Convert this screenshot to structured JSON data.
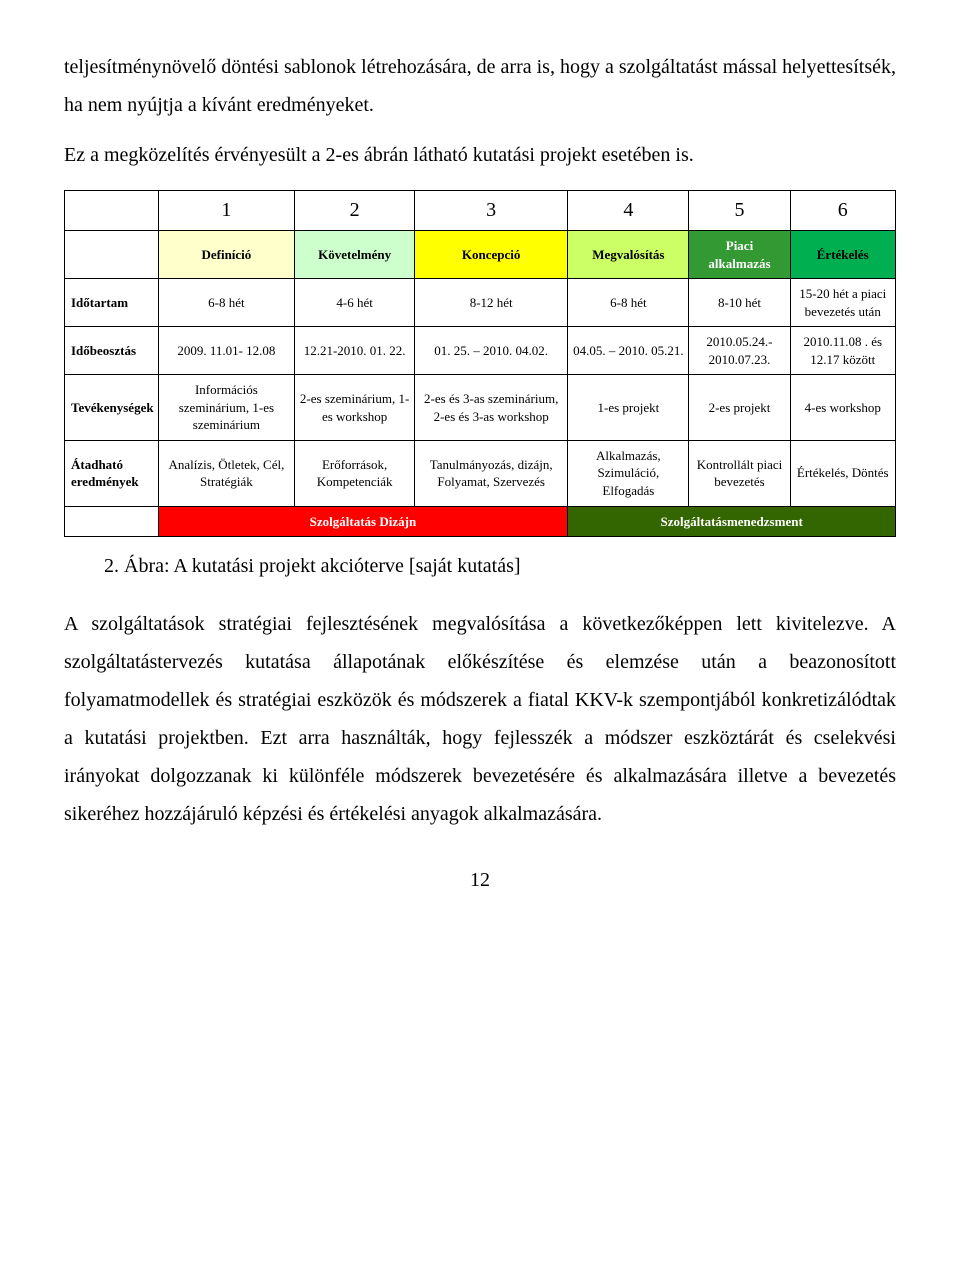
{
  "intro": {
    "p1": "teljesítménynövelő döntési sablonok létrehozására, de arra is, hogy a szolgáltatást mással helyettesítsék, ha nem nyújtja a kívánt eredményeket.",
    "p2": "Ez a megközelítés érvényesült a 2-es ábrán látható kutatási projekt esetében is."
  },
  "table": {
    "numbers": [
      "",
      "1",
      "2",
      "3",
      "4",
      "5",
      "6"
    ],
    "header_labels": [
      "Definíció",
      "Követelmény",
      "Koncepció",
      "Megvalósítás",
      "Piaci alkalmazás",
      "Értékelés"
    ],
    "header_bg": [
      "#ffffcc",
      "#ccffcc",
      "#ffff00",
      "#ccff66",
      "#339933",
      "#00b050"
    ],
    "header_color": [
      "#000",
      "#000",
      "#000",
      "#000",
      "#fff",
      "#000"
    ],
    "row_labels": [
      "Időtartam",
      "Időbeosztás",
      "Tevékenységek",
      "Átadható eredmények"
    ],
    "rows": [
      [
        "6-8 hét",
        "4-6 hét",
        "8-12 hét",
        "6-8 hét",
        "8-10 hét",
        "15-20 hét a piaci bevezetés után"
      ],
      [
        "2009. 11.01- 12.08",
        "12.21-2010. 01. 22.",
        "01. 25. – 2010. 04.02.",
        "04.05. – 2010. 05.21.",
        "2010.05.24.- 2010.07.23.",
        "2010.11.08 . és 12.17 között"
      ],
      [
        "Információs szeminárium, 1-es szeminárium",
        "2-es szeminárium, 1-es workshop",
        "2-es és 3-as szeminárium, 2-es és 3-as workshop",
        "1-es projekt",
        "2-es projekt",
        "4-es workshop"
      ],
      [
        "Analízis, Ötletek, Cél, Stratégiák",
        "Erőforrások, Kompetenciák",
        "Tanulmányozás, dizájn, Folyamat, Szervezés",
        "Alkalmazás, Szimuláció, Elfogadás",
        "Kontrollált piaci bevezetés",
        "Értékelés, Döntés"
      ]
    ],
    "footer": {
      "left_label": "Szolgáltatás Dizájn",
      "left_bg": "#ff0000",
      "left_color": "#fff",
      "right_label": "Szolgáltatásmenedzsment",
      "right_bg": "#336600",
      "right_color": "#fff"
    }
  },
  "caption": "2.  Ábra: A kutatási projekt akcióterve [saját kutatás]",
  "body_p": "A szolgáltatások stratégiai fejlesztésének megvalósítása a következőképpen lett kivitelezve. A szolgáltatástervezés kutatása állapotának előkészítése és elemzése után a beazonosított folyamatmodellek és stratégiai eszközök és módszerek a fiatal KKV-k szempontjából konkretizálódtak a kutatási projektben. Ezt arra használták, hogy fejlesszék a módszer eszköztárát és cselekvési irányokat dolgozzanak ki különféle módszerek bevezetésére és alkalmazására illetve a bevezetés sikeréhez hozzájáruló képzési és értékelési anyagok alkalmazására.",
  "page_number": "12"
}
